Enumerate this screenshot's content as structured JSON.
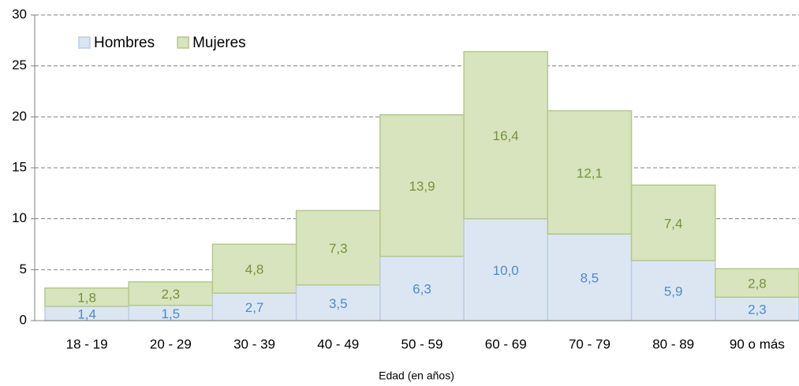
{
  "chart_data": {
    "type": "stacked-bar",
    "x_label": "Edad (en años)",
    "categories": [
      "18 - 19",
      "20 - 29",
      "30 - 39",
      "40 - 49",
      "50 - 59",
      "60 - 69",
      "70 - 79",
      "80 - 89",
      "90 o más"
    ],
    "series": [
      {
        "name": "Hombres",
        "color": "#dce6f2",
        "label_color": "#4a8bd0",
        "values": [
          1.4,
          1.5,
          2.7,
          3.5,
          6.3,
          10.0,
          8.5,
          5.9,
          2.3
        ],
        "value_labels": [
          "1,4",
          "1,5",
          "2,7",
          "3,5",
          "6,3",
          "10,0",
          "8,5",
          "5,9",
          "2,3"
        ]
      },
      {
        "name": "Mujeres",
        "color": "#d7e4bd",
        "label_color": "#76923c",
        "values": [
          1.8,
          2.3,
          4.8,
          7.3,
          13.9,
          16.4,
          12.1,
          7.4,
          2.8
        ],
        "value_labels": [
          "1,8",
          "2,3",
          "4,8",
          "7,3",
          "13,9",
          "16,4",
          "12,1",
          "7,4",
          "2,8"
        ]
      }
    ],
    "ylim": [
      0,
      30
    ],
    "yticks": [
      0,
      5,
      10,
      15,
      20,
      25,
      30
    ],
    "grid": true,
    "legend": "top-left"
  }
}
